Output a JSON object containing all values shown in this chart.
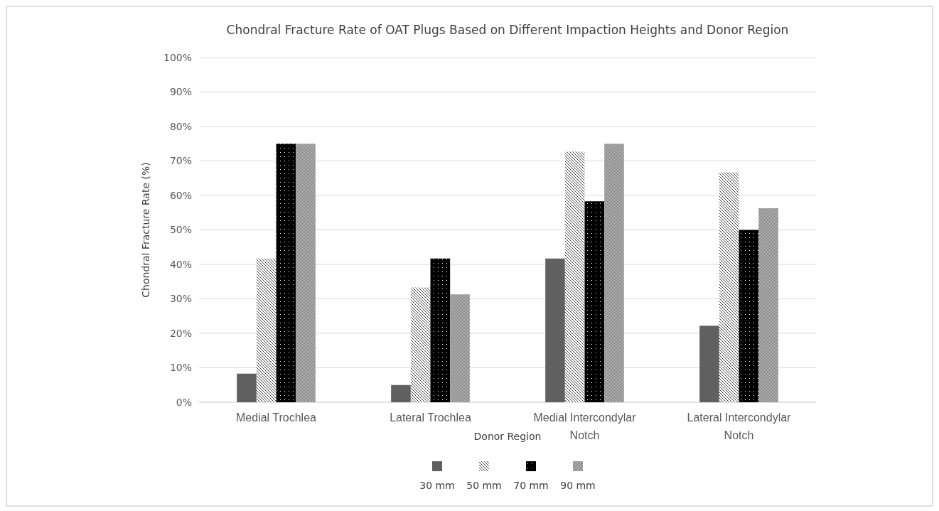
{
  "chart_data": {
    "type": "bar",
    "title": "Chondral Fracture Rate of OAT Plugs Based on Different Impaction Heights and Donor Region",
    "xlabel": "Donor Region",
    "ylabel": "Chondral Fracture Rate (%)",
    "categories": [
      "Medial Trochlea",
      "Lateral Trochlea",
      "Medial Intercondylar Notch",
      "Lateral Intercondylar Notch"
    ],
    "series": [
      {
        "name": "30 mm",
        "color": "#606060",
        "values": [
          8.3,
          5,
          41.7,
          22.2
        ]
      },
      {
        "name": "50 mm",
        "color": "#404040",
        "values": [
          41.7,
          33.3,
          72.7,
          66.7
        ]
      },
      {
        "name": "70 mm",
        "color": "#000000",
        "values": [
          75,
          41.7,
          58.3,
          50
        ]
      },
      {
        "name": "90 mm",
        "color": "#7f7f7f",
        "values": [
          75,
          31.3,
          75,
          56.3
        ]
      }
    ],
    "ylim": [
      0,
      100
    ],
    "yticks": [
      {
        "value": 0,
        "label": "0%"
      },
      {
        "value": 10,
        "label": "10%"
      },
      {
        "value": 20,
        "label": "20%"
      },
      {
        "value": 30,
        "label": "30%"
      },
      {
        "value": 40,
        "label": "40%"
      },
      {
        "value": 50,
        "label": "50%"
      },
      {
        "value": 60,
        "label": "60%"
      },
      {
        "value": 70,
        "label": "70%"
      },
      {
        "value": 80,
        "label": "80%"
      },
      {
        "value": 90,
        "label": "90%"
      },
      {
        "value": 100,
        "label": "100%"
      }
    ],
    "grid": "y",
    "legend": "bottom"
  }
}
